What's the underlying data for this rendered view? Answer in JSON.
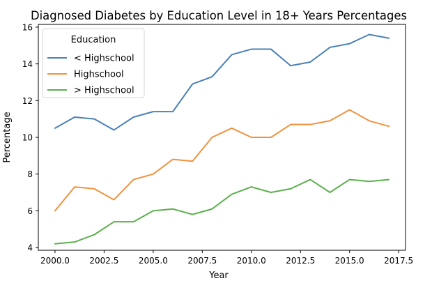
{
  "chart_data": {
    "type": "line",
    "title": "Diagnosed Diabetes by Education Level in 18+ Years Percentages",
    "xlabel": "Year",
    "ylabel": "Percentage",
    "x": [
      2000,
      2001,
      2002,
      2003,
      2004,
      2005,
      2006,
      2007,
      2008,
      2009,
      2010,
      2011,
      2012,
      2013,
      2014,
      2015,
      2016,
      2017
    ],
    "xlim": [
      1999.15,
      2017.85
    ],
    "ylim": [
      3.85,
      16.15
    ],
    "x_ticks": [
      2000.0,
      2002.5,
      2005.0,
      2007.5,
      2010.0,
      2012.5,
      2015.0,
      2017.5
    ],
    "x_tick_labels": [
      "2000.0",
      "2002.5",
      "2005.0",
      "2007.5",
      "2010.0",
      "2012.5",
      "2015.0",
      "2017.5"
    ],
    "y_ticks": [
      4,
      6,
      8,
      10,
      12,
      14,
      16
    ],
    "y_tick_labels": [
      "4",
      "6",
      "8",
      "10",
      "12",
      "14",
      "16"
    ],
    "grid": false,
    "legend": {
      "title": "Education",
      "position": "top-left"
    },
    "series": [
      {
        "name": "< Highschool",
        "color": "#4a80b8",
        "values": [
          10.5,
          11.1,
          11.0,
          10.4,
          11.1,
          11.4,
          11.4,
          12.9,
          13.3,
          14.5,
          14.8,
          14.8,
          13.9,
          14.1,
          14.9,
          15.1,
          15.6,
          15.4
        ]
      },
      {
        "name": "Highschool",
        "color": "#f1913d",
        "values": [
          6.0,
          7.3,
          7.2,
          6.6,
          7.7,
          8.0,
          8.8,
          8.7,
          10.0,
          10.5,
          10.0,
          10.0,
          10.7,
          10.7,
          10.9,
          11.5,
          10.9,
          10.6
        ]
      },
      {
        "name": "> Highschool",
        "color": "#5bb04d",
        "values": [
          4.2,
          4.3,
          4.7,
          5.4,
          5.4,
          6.0,
          6.1,
          5.8,
          6.1,
          6.9,
          7.3,
          7.0,
          7.2,
          7.7,
          7.0,
          7.7,
          7.6,
          7.7
        ]
      }
    ]
  }
}
